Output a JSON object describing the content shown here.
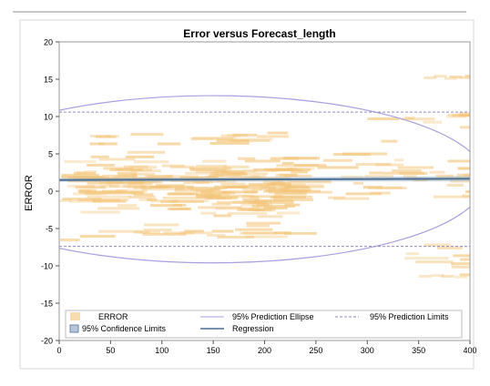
{
  "chart_data": {
    "type": "scatter",
    "title": "Error versus Forecast_length",
    "xlabel": "",
    "ylabel": "ERROR",
    "xlim": [
      0,
      400
    ],
    "ylim": [
      -20,
      20
    ],
    "xticks": [
      0,
      50,
      100,
      150,
      200,
      250,
      300,
      350,
      400
    ],
    "yticks": [
      -20,
      -15,
      -10,
      -5,
      0,
      5,
      10,
      15,
      20
    ],
    "grid": false,
    "legend_position": "bottom-inside",
    "legend": {
      "error": "ERROR",
      "confidence": "95% Confidence Limits",
      "ellipse": "95% Prediction Ellipse",
      "regression": "Regression",
      "prediction": "95% Prediction Limits"
    },
    "colors": {
      "points": "#f3c57a",
      "regression": "#4a6f94",
      "confidence": "#9fb3c8",
      "ellipse": "#a99fe0",
      "prediction": "#8c8cbf",
      "frame": "#9a9a9a"
    },
    "regression": {
      "intercept": 1.5,
      "slope": 0.0004
    },
    "prediction_limits": {
      "upper": 10.6,
      "lower": -7.4
    },
    "ellipse": {
      "center_x": 150,
      "center_y": 1.6,
      "semi_x": 265,
      "semi_y": 11.2
    },
    "point_clusters": [
      {
        "x_from": 0,
        "x_to": 225,
        "y_from": -5,
        "y_to": 6.5,
        "count": 230
      },
      {
        "x_from": 0,
        "x_to": 220,
        "y_from": -7,
        "y_to": -4,
        "count": 22
      },
      {
        "x_from": 0,
        "x_to": 220,
        "y_from": 6,
        "y_to": 8.5,
        "count": 18
      },
      {
        "x_from": 200,
        "x_to": 400,
        "y_from": -4,
        "y_to": 8,
        "count": 55
      },
      {
        "x_from": 300,
        "x_to": 400,
        "y_from": 8,
        "y_to": 12,
        "count": 10
      },
      {
        "x_from": 330,
        "x_to": 400,
        "y_from": -11.5,
        "y_to": -6.5,
        "count": 9
      }
    ],
    "point_extras": [
      {
        "x": 355,
        "y": 15.2
      },
      {
        "x": 365,
        "y": 15.4
      },
      {
        "x": 375,
        "y": 15.1
      },
      {
        "x": 380,
        "y": 15.3
      },
      {
        "x": 390,
        "y": 15.2
      },
      {
        "x": 395,
        "y": 15.4
      },
      {
        "x": 350,
        "y": -11.4
      },
      {
        "x": 362,
        "y": -11.3
      },
      {
        "x": 372,
        "y": -11.4
      },
      {
        "x": 390,
        "y": -11.2
      },
      {
        "x": 385,
        "y": -11.5
      }
    ]
  }
}
